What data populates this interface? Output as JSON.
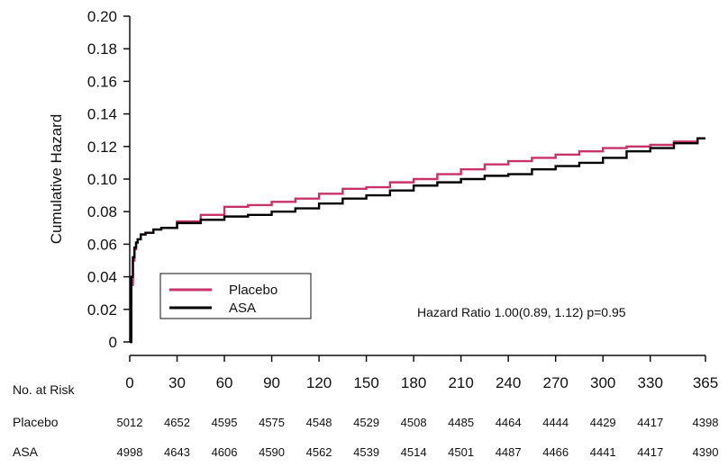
{
  "chart_data": {
    "type": "line",
    "title": "",
    "xlabel": "",
    "ylabel": "Cumulative Hazard",
    "xlim": [
      0,
      365
    ],
    "ylim": [
      0,
      0.2
    ],
    "x_ticks": [
      0,
      30,
      60,
      90,
      120,
      150,
      180,
      210,
      240,
      270,
      300,
      330,
      365
    ],
    "y_ticks": [
      {
        "value": 0,
        "label": "0"
      },
      {
        "value": 0.02,
        "label": "0.02"
      },
      {
        "value": 0.04,
        "label": "0.04"
      },
      {
        "value": 0.06,
        "label": "0.06"
      },
      {
        "value": 0.08,
        "label": "0.08"
      },
      {
        "value": 0.1,
        "label": "0.10"
      },
      {
        "value": 0.12,
        "label": "0.12"
      },
      {
        "value": 0.14,
        "label": "0.14"
      },
      {
        "value": 0.16,
        "label": "0.16"
      },
      {
        "value": 0.18,
        "label": "0.18"
      },
      {
        "value": 0.2,
        "label": "0.20"
      }
    ],
    "grid": false,
    "legend_position": "bottom-left",
    "annotation": "Hazard Ratio 1.00(0.89, 1.12) p=0.95",
    "series": [
      {
        "name": "Placebo",
        "color": "#c8336a",
        "x": [
          0,
          1,
          2,
          3,
          4,
          5,
          7,
          10,
          15,
          20,
          30,
          45,
          60,
          75,
          90,
          105,
          120,
          135,
          150,
          165,
          180,
          195,
          210,
          225,
          240,
          255,
          270,
          285,
          300,
          315,
          330,
          345,
          360,
          365
        ],
        "y": [
          0,
          0.035,
          0.05,
          0.057,
          0.061,
          0.063,
          0.066,
          0.067,
          0.069,
          0.07,
          0.074,
          0.078,
          0.083,
          0.084,
          0.086,
          0.088,
          0.091,
          0.094,
          0.095,
          0.098,
          0.1,
          0.103,
          0.106,
          0.109,
          0.111,
          0.113,
          0.115,
          0.117,
          0.119,
          0.12,
          0.121,
          0.123,
          0.125,
          0.125
        ]
      },
      {
        "name": "ASA",
        "color": "#000000",
        "x": [
          0,
          1,
          2,
          3,
          4,
          5,
          7,
          10,
          15,
          20,
          30,
          45,
          60,
          75,
          90,
          105,
          120,
          135,
          150,
          165,
          180,
          195,
          210,
          225,
          240,
          255,
          270,
          285,
          300,
          315,
          330,
          345,
          360,
          365
        ],
        "y": [
          0,
          0.04,
          0.052,
          0.058,
          0.061,
          0.063,
          0.066,
          0.067,
          0.069,
          0.07,
          0.073,
          0.075,
          0.077,
          0.078,
          0.08,
          0.082,
          0.085,
          0.088,
          0.09,
          0.093,
          0.096,
          0.098,
          0.1,
          0.102,
          0.103,
          0.106,
          0.108,
          0.11,
          0.113,
          0.117,
          0.119,
          0.122,
          0.125,
          0.125
        ]
      }
    ]
  },
  "risk_table": {
    "title": "No. at Risk",
    "rows": [
      {
        "label": "Placebo",
        "values": [
          "5012",
          "4652",
          "4595",
          "4575",
          "4548",
          "4529",
          "4508",
          "4485",
          "4464",
          "4444",
          "4429",
          "4417",
          "4398"
        ]
      },
      {
        "label": "ASA",
        "values": [
          "4998",
          "4643",
          "4606",
          "4590",
          "4562",
          "4539",
          "4514",
          "4501",
          "4487",
          "4466",
          "4441",
          "4417",
          "4390"
        ]
      }
    ]
  }
}
